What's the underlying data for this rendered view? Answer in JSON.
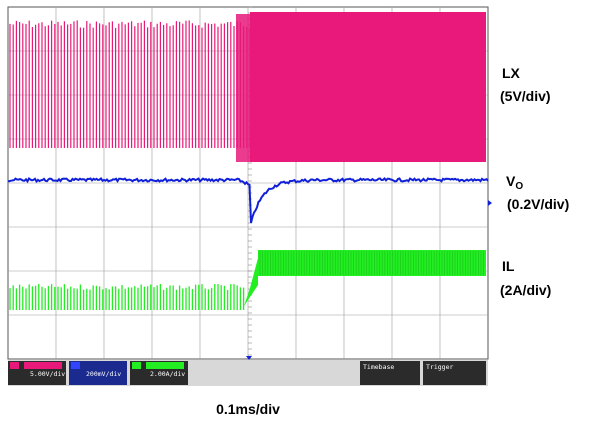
{
  "chart_data": {
    "type": "line",
    "xlabel": "0.1ms/div",
    "grid": true,
    "series": [
      {
        "name": "LX",
        "scale": "(5V/div)",
        "color": "#e8197a",
        "behavior": "switching waveform; pulses at ~48% duty before the load step, near-continuous high after it"
      },
      {
        "name": "VO",
        "name_subscript": "O",
        "scale": "(0.2V/div)",
        "color": "#1020d8",
        "behavior": "flat with small ripple; transient dip of ~0.25 div at the load step, recovers within ~0.3 div"
      },
      {
        "name": "IL",
        "scale": "(2A/div)",
        "color": "#22ee22",
        "behavior": "low ripple current ~0.3 div high; steps up by ~0.6 div at the load step"
      }
    ],
    "load_step_division": 4.0,
    "divisions": {
      "x": 10,
      "y": 8
    }
  },
  "labels": {
    "lx_name": "LX",
    "lx_scale": "(5V/div)",
    "vo_name": "V",
    "vo_sub": "O",
    "vo_scale": "(0.2V/div)",
    "il_name": "IL",
    "il_scale": "(2A/div)",
    "timebase": "0.1ms/div"
  },
  "status_bar": {
    "ch1": "5.00V/div",
    "ch2": "200mV/div",
    "ch3": "2.00A/div",
    "timebase_label": "Timebase",
    "trigger_label": "Trigger"
  },
  "colors": {
    "lx": "#e8197a",
    "vo": "#1020d8",
    "il": "#22ee22",
    "grid": "#9a9a9a"
  }
}
